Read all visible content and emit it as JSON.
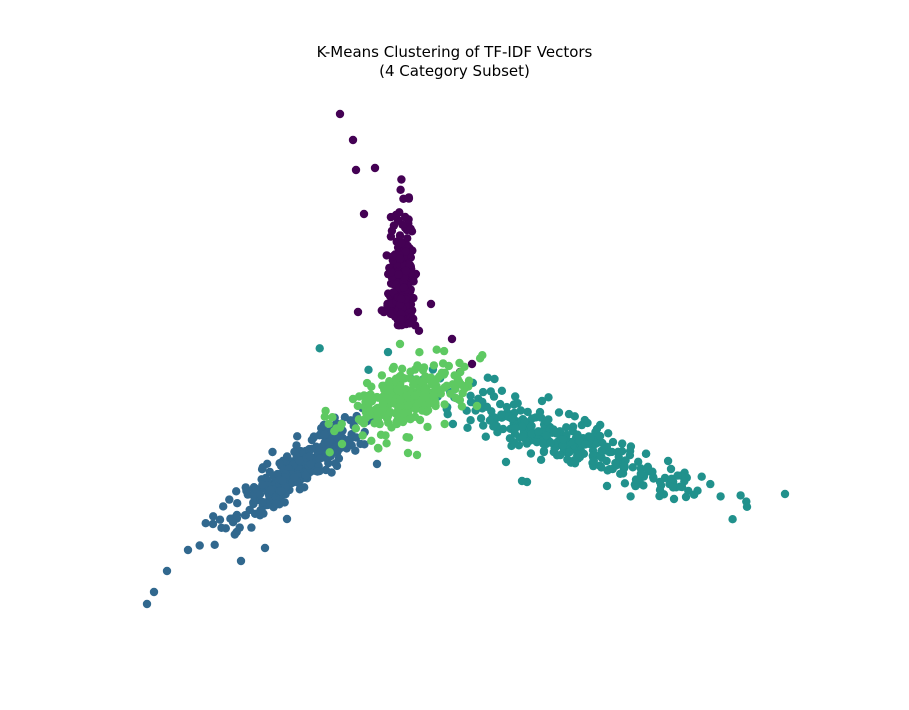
{
  "chart_data": {
    "type": "scatter",
    "title_line1": "K-Means Clustering of TF-IDF Vectors",
    "title_line2": "(4 Category Subset)",
    "axes_visible": false,
    "grid": false,
    "legend": "none",
    "series": [
      {
        "color": "#440154",
        "center": [
          402,
          318
        ],
        "count": 260,
        "spread": [
          14,
          22
        ],
        "outliers": [
          [
            340,
            114
          ],
          [
            353,
            140
          ],
          [
            356,
            170
          ],
          [
            375,
            168
          ],
          [
            364,
            214
          ],
          [
            358,
            312
          ],
          [
            452,
            339
          ],
          [
            472,
            364
          ],
          [
            460,
            372
          ],
          [
            431,
            304
          ]
        ]
      },
      {
        "color": "#31688e",
        "center": [
          296,
          470
        ],
        "count": 300,
        "spread": [
          42,
          10
        ],
        "angle": -37,
        "outliers": [
          [
            147,
            604
          ],
          [
            154,
            592
          ],
          [
            167,
            571
          ],
          [
            188,
            550
          ],
          [
            213,
            524
          ],
          [
            241,
            561
          ],
          [
            265,
            548
          ],
          [
            377,
            464
          ],
          [
            287,
            519
          ]
        ]
      },
      {
        "color": "#21918c",
        "center": [
          566,
          441
        ],
        "count": 300,
        "spread": [
          70,
          11
        ],
        "angle": 21,
        "outliers": [
          [
            785,
            494
          ],
          [
            686,
            497
          ],
          [
            674,
            499
          ],
          [
            682,
            487
          ],
          [
            671,
            469
          ],
          [
            527,
            482
          ],
          [
            522,
            481
          ],
          [
            506,
            462
          ],
          [
            607,
            486
          ],
          [
            660,
            482
          ]
        ]
      },
      {
        "color": "#5ec962",
        "center": [
          404,
          398
        ],
        "count": 260,
        "spread": [
          30,
          14
        ],
        "angle": -25,
        "outliers": [
          [
            408,
            453
          ],
          [
            417,
            455
          ],
          [
            353,
            399
          ],
          [
            342,
            444
          ],
          [
            378,
            448
          ],
          [
            400,
            344
          ],
          [
            464,
            387
          ],
          [
            477,
            406
          ],
          [
            420,
            420
          ]
        ]
      }
    ]
  }
}
